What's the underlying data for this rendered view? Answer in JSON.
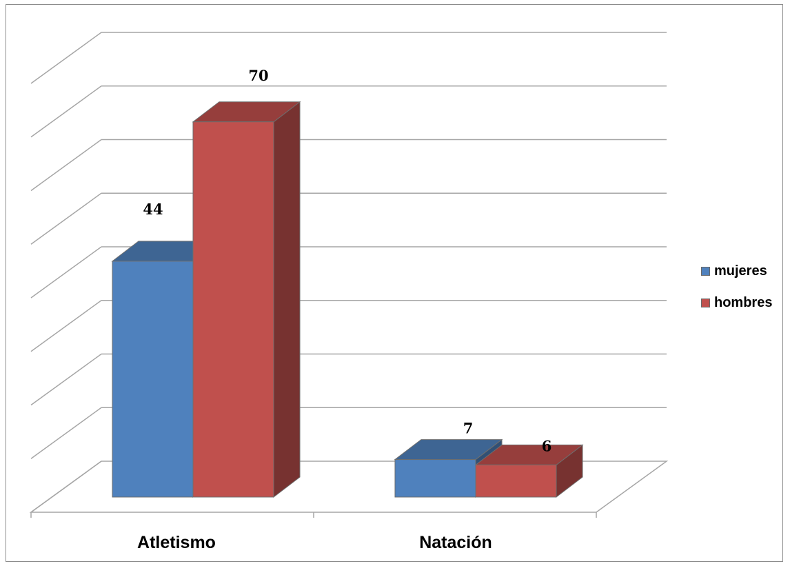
{
  "chart_data": {
    "type": "bar",
    "title": "",
    "xlabel": "",
    "ylabel": "",
    "categories": [
      "Atletismo",
      "Natación"
    ],
    "series": [
      {
        "name": "mujeres",
        "values": [
          44,
          7
        ],
        "color": "#4f81bd"
      },
      {
        "name": "hombres",
        "values": [
          70,
          6
        ],
        "color": "#c0504d"
      }
    ],
    "ylim": [
      0,
      80
    ],
    "grid": true,
    "legend_position": "right",
    "style": "3d-clustered-column"
  }
}
